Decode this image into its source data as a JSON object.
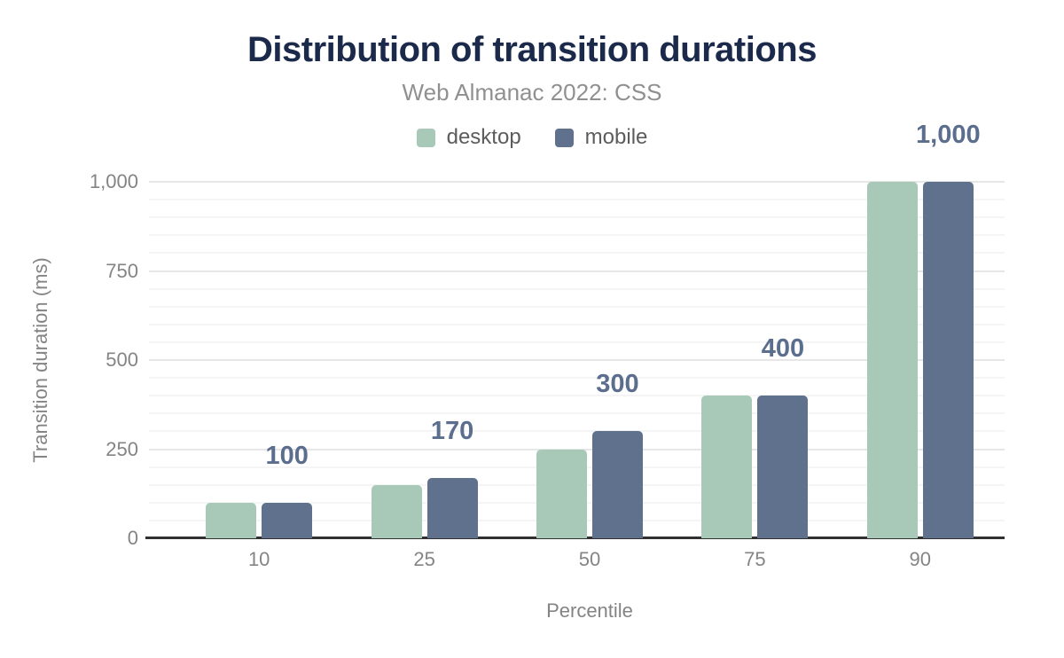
{
  "chart_data": {
    "type": "bar",
    "title": "Distribution of transition durations",
    "subtitle": "Web Almanac 2022: CSS",
    "xlabel": "Percentile",
    "ylabel": "Transition duration (ms)",
    "categories": [
      "10",
      "25",
      "50",
      "75",
      "90"
    ],
    "series": [
      {
        "name": "desktop",
        "color": "#a8c9b7",
        "values": [
          100,
          150,
          250,
          400,
          1000
        ]
      },
      {
        "name": "mobile",
        "color": "#5f718c",
        "values": [
          100,
          170,
          300,
          400,
          1000
        ]
      }
    ],
    "value_labels": {
      "series": "mobile",
      "labels": [
        "100",
        "170",
        "300",
        "400",
        "1,000"
      ]
    },
    "ylim": [
      0,
      1000
    ],
    "yticks": [
      {
        "v": 0,
        "label": "0"
      },
      {
        "v": 250,
        "label": "250"
      },
      {
        "v": 500,
        "label": "500"
      },
      {
        "v": 750,
        "label": "750"
      },
      {
        "v": 1000,
        "label": "1,000"
      }
    ],
    "grid": {
      "on": true,
      "minor_step": 50,
      "major_step": 250,
      "minor_color": "#f5f5f5",
      "major_color": "#e7e7e7"
    },
    "legend_position": "top",
    "colors": {
      "title": "#1b2a4b",
      "subtitle": "#909090",
      "tick_text": "#848484",
      "legend_text": "#5c5c5c",
      "annotation": "#5b6e8e",
      "axis_line": "#303030"
    }
  }
}
